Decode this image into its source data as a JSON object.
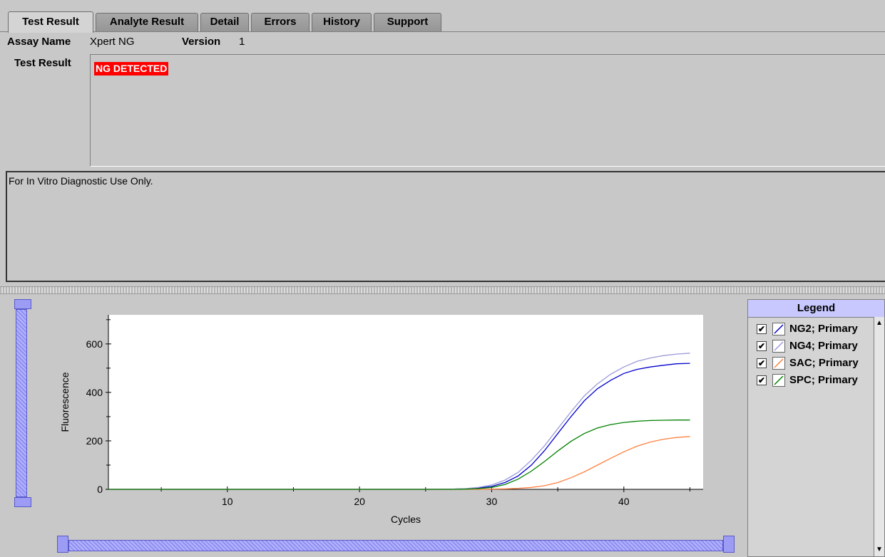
{
  "tabs": [
    {
      "label": "Test Result",
      "active": true
    },
    {
      "label": "Analyte Result",
      "active": false
    },
    {
      "label": "Detail",
      "active": false
    },
    {
      "label": "Errors",
      "active": false
    },
    {
      "label": "History",
      "active": false
    },
    {
      "label": "Support",
      "active": false
    }
  ],
  "assay": {
    "name_label": "Assay Name",
    "name_value": "Xpert NG",
    "version_label": "Version",
    "version_value": "1"
  },
  "test_result": {
    "label": "Test Result",
    "value": "NG DETECTED",
    "value_color": "#ff0000"
  },
  "notes": {
    "text": "For In Vitro Diagnostic Use Only."
  },
  "legend": {
    "title": "Legend",
    "items": [
      {
        "label": "NG2; Primary",
        "color": "#0000cc",
        "checked": true,
        "check_glyph": "✔"
      },
      {
        "label": "NG4; Primary",
        "color": "#9a9ad8",
        "checked": true,
        "check_glyph": "✔"
      },
      {
        "label": "SAC; Primary",
        "color": "#ff8040",
        "checked": true,
        "check_glyph": "✔"
      },
      {
        "label": "SPC; Primary",
        "color": "#008000",
        "checked": true,
        "check_glyph": "✔"
      }
    ]
  },
  "chart_data": {
    "type": "line",
    "xlabel": "Cycles",
    "ylabel": "Fluorescence",
    "xlim": [
      1,
      46
    ],
    "ylim": [
      0,
      720
    ],
    "xticks": [
      10,
      20,
      30,
      40
    ],
    "yticks": [
      0,
      200,
      400,
      600
    ],
    "grid": false,
    "x": [
      1,
      5,
      10,
      15,
      20,
      25,
      27,
      28,
      29,
      30,
      31,
      32,
      33,
      34,
      35,
      36,
      37,
      38,
      39,
      40,
      41,
      42,
      43,
      44,
      45
    ],
    "series": [
      {
        "name": "NG2; Primary",
        "color": "#0000cc",
        "values": [
          0,
          0,
          0,
          0,
          0,
          0,
          1,
          2,
          5,
          12,
          28,
          55,
          100,
          160,
          230,
          300,
          365,
          415,
          450,
          478,
          495,
          505,
          512,
          518,
          520
        ]
      },
      {
        "name": "NG4; Primary",
        "color": "#9a9ad8",
        "values": [
          0,
          0,
          0,
          0,
          0,
          0,
          1,
          3,
          8,
          18,
          38,
          70,
          120,
          180,
          250,
          320,
          385,
          435,
          475,
          505,
          528,
          542,
          552,
          558,
          562
        ]
      },
      {
        "name": "SAC; Primary",
        "color": "#ff8040",
        "values": [
          0,
          0,
          0,
          0,
          0,
          0,
          0,
          0,
          0,
          1,
          2,
          4,
          8,
          15,
          28,
          48,
          72,
          100,
          128,
          155,
          178,
          195,
          207,
          214,
          218
        ]
      },
      {
        "name": "SPC; Primary",
        "color": "#008000",
        "values": [
          0,
          0,
          0,
          0,
          0,
          0,
          0,
          1,
          3,
          8,
          20,
          42,
          75,
          115,
          158,
          198,
          230,
          253,
          267,
          276,
          281,
          284,
          285,
          286,
          286
        ]
      }
    ]
  }
}
